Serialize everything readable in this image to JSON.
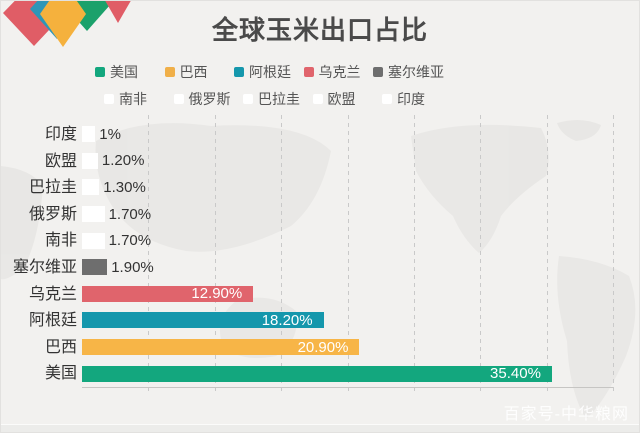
{
  "title": "全球玉米出口占比",
  "watermark": "百家号-中华粮网",
  "colors": {
    "green": "#13a77e",
    "yellow": "#f7b547",
    "teal": "#1597ac",
    "red": "#e0646c",
    "gray": "#6e6e6e",
    "white_bar": "#ffffff",
    "background": "#f2f1ef",
    "gridline": "#c9c9c9",
    "title_text": "#4a4a4a",
    "map_shape": "#e8e7e4"
  },
  "legend": {
    "rows": [
      {
        "items": [
          {
            "label": "美国",
            "color": "#13a77e"
          },
          {
            "label": "巴西",
            "color": "#f0af48"
          },
          {
            "label": "阿根廷",
            "color": "#1597ac"
          },
          {
            "label": "乌克兰",
            "color": "#e0646c"
          },
          {
            "label": "塞尔维亚",
            "color": "#6e6e6e"
          }
        ]
      },
      {
        "items": [
          {
            "label": "南非",
            "color": "#ffffff"
          },
          {
            "label": "俄罗斯",
            "color": "#ffffff"
          },
          {
            "label": "巴拉圭",
            "color": "#ffffff"
          },
          {
            "label": "欧盟",
            "color": "#ffffff"
          },
          {
            "label": "印度",
            "color": "#ffffff"
          }
        ]
      }
    ]
  },
  "chart_data": {
    "type": "bar",
    "orientation": "horizontal",
    "title": "全球玉米出口占比",
    "xlabel": "",
    "ylabel": "",
    "xlim": [
      0,
      40
    ],
    "grid_interval": 5,
    "grid": true,
    "legend_position": "top",
    "rows": [
      {
        "category": "印度",
        "value": 1.0,
        "label": "1%",
        "color": "#ffffff"
      },
      {
        "category": "欧盟",
        "value": 1.2,
        "label": "1.20%",
        "color": "#ffffff"
      },
      {
        "category": "巴拉圭",
        "value": 1.3,
        "label": "1.30%",
        "color": "#ffffff"
      },
      {
        "category": "俄罗斯",
        "value": 1.7,
        "label": "1.70%",
        "color": "#ffffff"
      },
      {
        "category": "南非",
        "value": 1.7,
        "label": "1.70%",
        "color": "#ffffff"
      },
      {
        "category": "塞尔维亚",
        "value": 1.9,
        "label": "1.90%",
        "color": "#6e6e6e"
      },
      {
        "category": "乌克兰",
        "value": 12.9,
        "label": "12.90%",
        "color": "#e0646c"
      },
      {
        "category": "阿根廷",
        "value": 18.2,
        "label": "18.20%",
        "color": "#1597ac"
      },
      {
        "category": "巴西",
        "value": 20.9,
        "label": "20.90%",
        "color": "#f7b547"
      },
      {
        "category": "美国",
        "value": 35.4,
        "label": "35.40%",
        "color": "#13a77e"
      }
    ]
  },
  "logo_diamond_colors": [
    "#e05d66",
    "#2e96b8",
    "#1ba16b",
    "#f5b13d",
    "#e05d66"
  ]
}
